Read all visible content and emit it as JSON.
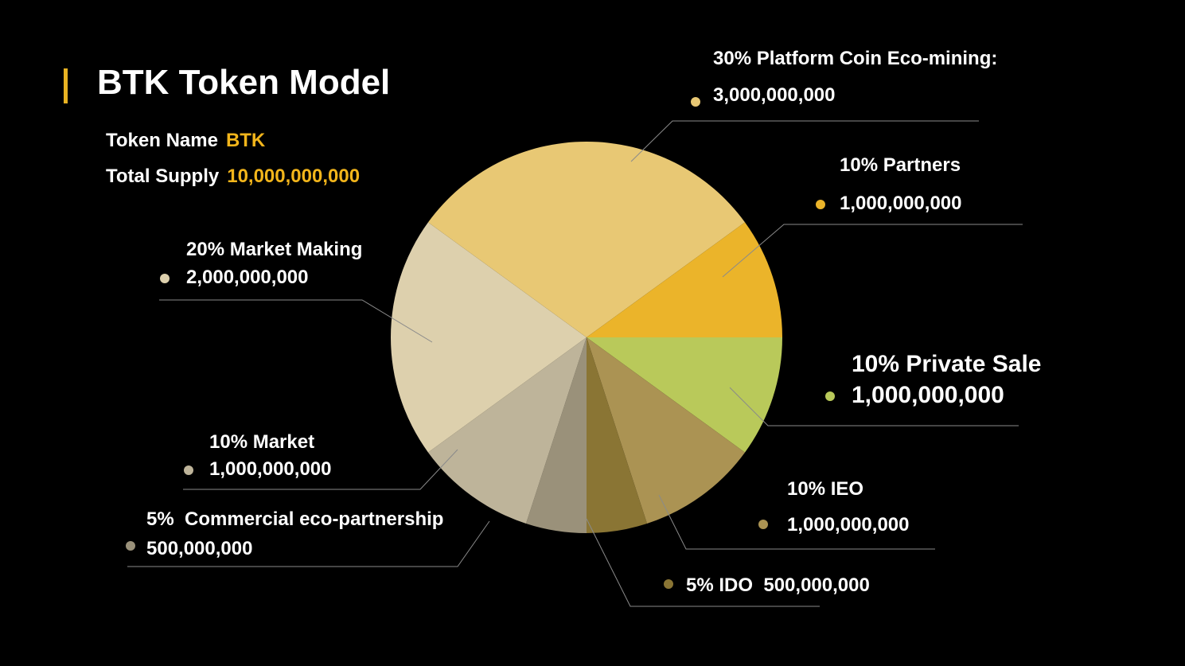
{
  "header": {
    "title": "BTK Token Model",
    "accent_color": "#E8B222"
  },
  "token_info": {
    "name_label": "Token Name",
    "name_value": "BTK",
    "supply_label": "Total Supply",
    "supply_value": "10,000,000,000",
    "value_color": "#F2B51B"
  },
  "chart_data": {
    "type": "pie",
    "title": "",
    "total": 10000000000,
    "slices": [
      {
        "pct_label": "10% Private Sale",
        "amount_label": "1,000,000,000",
        "value": 1000000000,
        "percent": 10,
        "color": "#B9C95A",
        "highlight": true
      },
      {
        "pct_label": "10% IEO",
        "amount_label": "1,000,000,000",
        "value": 1000000000,
        "percent": 10,
        "color": "#AB9353"
      },
      {
        "pct_label": "5% IDO",
        "amount_label": "500,000,000",
        "value": 500000000,
        "percent": 5,
        "color": "#8A7534",
        "inline": true
      },
      {
        "pct_label": "5%  Commercial eco-partnership",
        "amount_label": "500,000,000",
        "value": 500000000,
        "percent": 5,
        "color": "#9A917A"
      },
      {
        "pct_label": "10% Market",
        "amount_label": "1,000,000,000",
        "value": 1000000000,
        "percent": 10,
        "color": "#BEB49A"
      },
      {
        "pct_label": "20% Market Making",
        "amount_label": "2,000,000,000",
        "value": 2000000000,
        "percent": 20,
        "color": "#DDD0AD"
      },
      {
        "pct_label": "30% Platform Coin Eco-mining:",
        "amount_label": "3,000,000,000",
        "value": 3000000000,
        "percent": 30,
        "color": "#E8C874"
      },
      {
        "pct_label": "10% Partners",
        "amount_label": "1,000,000,000",
        "value": 1000000000,
        "percent": 10,
        "color": "#EBB42A"
      }
    ]
  }
}
